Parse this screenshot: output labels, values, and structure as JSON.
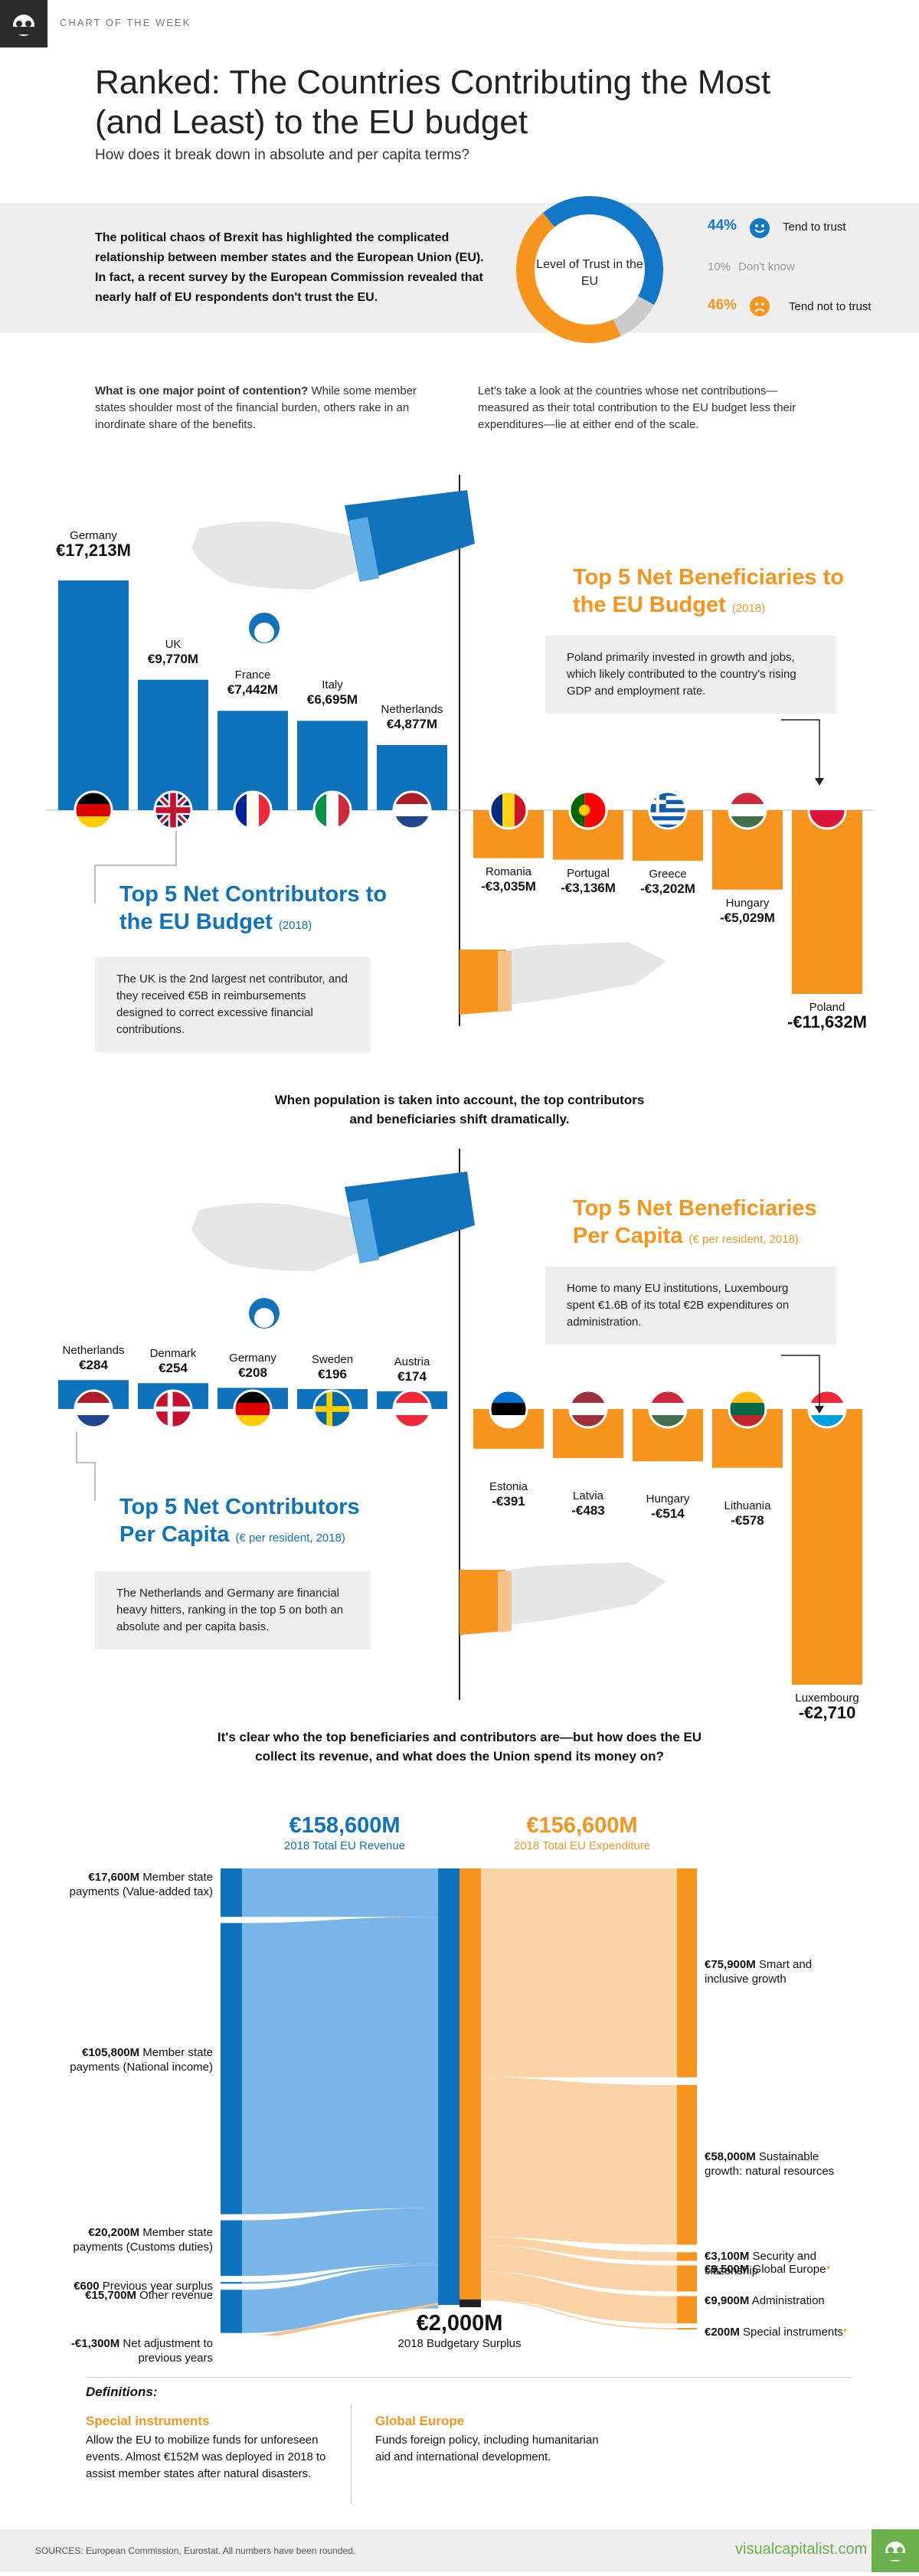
{
  "header": {
    "chart_of_week": "CHART OF THE WEEK",
    "title": "Ranked: The Countries Contributing the Most (and Least) to the EU budget",
    "subtitle": "How does it break down in absolute and per capita terms?"
  },
  "intro": {
    "text": "The political chaos of Brexit has highlighted the complicated relationship between member states and the European Union (EU). In fact, a recent survey by the European Commission revealed that nearly half of EU respondents don't trust the EU.",
    "donut_label": "Level of Trust in the EU",
    "trust": [
      {
        "pct": "44%",
        "label": "Tend to trust",
        "value": 44,
        "color": "#1177c9"
      },
      {
        "pct": "10%",
        "label": "Don't know",
        "value": 10,
        "color": "#cccccc"
      },
      {
        "pct": "46%",
        "label": "Tend not to trust",
        "value": 46,
        "color": "#f7941d"
      }
    ]
  },
  "contention": {
    "lead": "What is one major point of contention?",
    "rest": " While some member states shoulder most of the financial burden, others rake in an inordinate share of the benefits.",
    "right": "Let's take a look at the countries whose net contributions—measured as their total contribution to the EU budget less their expenditures—lie at either end of the scale."
  },
  "absolute": {
    "contrib_title": "Top 5 Net Contributors to the EU Budget",
    "contrib_year": "(2018)",
    "contrib_note": "The UK is the 2nd largest net contributor, and they received €5B in reimbursements designed to correct excessive financial contributions.",
    "benef_title": "Top 5 Net Beneficiaries to the EU Budget",
    "benef_year": "(2018)",
    "benef_note": "Poland primarily invested in growth and jobs, which likely contributed to the country's rising GDP and employment rate."
  },
  "transition1": "When population is taken into account, the top contributors and beneficiaries shift dramatically.",
  "per_capita": {
    "contrib_title": "Top 5 Net Contributors Per Capita",
    "contrib_year": "(€ per resident, 2018)",
    "contrib_note": "The Netherlands and Germany are financial heavy hitters, ranking in the top 5 on both an absolute and per capita basis.",
    "benef_title": "Top 5 Net Beneficiaries Per Capita",
    "benef_year": "(€ per resident, 2018)",
    "benef_note": "Home to many EU institutions, Luxembourg spent €1.6B of its total €2B expenditures on administration."
  },
  "transition2": "It's clear who the top beneficiaries and contributors are—but how does the EU collect its revenue, and what does the Union spend its money on?",
  "flow": {
    "revenue_total": "€158,600M",
    "revenue_caption": "2018 Total EU Revenue",
    "expenditure_total": "€156,600M",
    "expenditure_caption": "2018 Total EU Expenditure",
    "surplus": "€2,000M",
    "surplus_caption": "2018 Budgetary Surplus"
  },
  "definitions": {
    "heading": "Definitions:",
    "d1_title": "Special instruments",
    "d1_text": "Allow the EU to mobilize funds for unforeseen events. Almost €152M was deployed in 2018 to assist member states after natural disasters.",
    "d2_title": "Global Europe",
    "d2_text": "Funds foreign policy, including humanitarian aid and international development."
  },
  "footer": {
    "sources": "SOURCES: European Commission, Eurostat. All numbers have been rounded.",
    "site": "visualcapitalist.com"
  },
  "chart_data": [
    {
      "type": "bar",
      "title": "Top 5 Net Contributors to the EU Budget (2018)",
      "unit": "€M",
      "categories": [
        "Germany",
        "UK",
        "France",
        "Italy",
        "Netherlands"
      ],
      "values": [
        17213,
        9770,
        7442,
        6695,
        4877
      ],
      "labels": [
        "€17,213M",
        "€9,770M",
        "€7,442M",
        "€6,695M",
        "€4,877M"
      ]
    },
    {
      "type": "bar",
      "title": "Top 5 Net Beneficiaries to the EU Budget (2018)",
      "unit": "€M",
      "categories": [
        "Romania",
        "Portugal",
        "Greece",
        "Hungary",
        "Poland"
      ],
      "values": [
        -3035,
        -3136,
        -3202,
        -5029,
        -11632
      ],
      "labels": [
        "-€3,035M",
        "-€3,136M",
        "-€3,202M",
        "-€5,029M",
        "-€11,632M"
      ]
    },
    {
      "type": "bar",
      "title": "Top 5 Net Contributors Per Capita (€ per resident, 2018)",
      "unit": "€ per resident",
      "categories": [
        "Netherlands",
        "Denmark",
        "Germany",
        "Sweden",
        "Austria"
      ],
      "values": [
        284,
        254,
        208,
        196,
        174
      ],
      "labels": [
        "€284",
        "€254",
        "€208",
        "€196",
        "€174"
      ]
    },
    {
      "type": "bar",
      "title": "Top 5 Net Beneficiaries Per Capita (€ per resident, 2018)",
      "unit": "€ per resident",
      "categories": [
        "Estonia",
        "Latvia",
        "Hungary",
        "Lithuania",
        "Luxembourg"
      ],
      "values": [
        -391,
        -483,
        -514,
        -578,
        -2710
      ],
      "labels": [
        "-€391",
        "-€483",
        "-€514",
        "-€578",
        "-€2,710"
      ]
    },
    {
      "type": "table",
      "title": "2018 Total EU Revenue",
      "total": 158600,
      "rows": [
        {
          "amount": "€17,600M",
          "label": "Member state payments (Value-added tax)",
          "value": 17600
        },
        {
          "amount": "€105,800M",
          "label": "Member state payments (National income)",
          "value": 105800
        },
        {
          "amount": "€20,200M",
          "label": "Member state payments (Customs duties)",
          "value": 20200
        },
        {
          "amount": "€600",
          "label": "Previous year surplus",
          "value": 600
        },
        {
          "amount": "€15,700M",
          "label": "Other revenue",
          "value": 15700
        },
        {
          "amount": "-€1,300M",
          "label": "Net adjustment to previous years",
          "value": -1300
        }
      ]
    },
    {
      "type": "table",
      "title": "2018 Total EU Expenditure",
      "total": 156600,
      "rows": [
        {
          "amount": "€75,900M",
          "label": "Smart and inclusive growth",
          "value": 75900
        },
        {
          "amount": "€58,000M",
          "label": "Sustainable growth: natural resources",
          "value": 58000
        },
        {
          "amount": "€3,100M",
          "label": "Security and citizenship",
          "value": 3100
        },
        {
          "amount": "€9,500M",
          "label": "Global Europe",
          "value": 9500,
          "star": true
        },
        {
          "amount": "€9,900M",
          "label": "Administration",
          "value": 9900
        },
        {
          "amount": "€200M",
          "label": "Special instruments",
          "value": 200,
          "star": true
        }
      ]
    }
  ]
}
